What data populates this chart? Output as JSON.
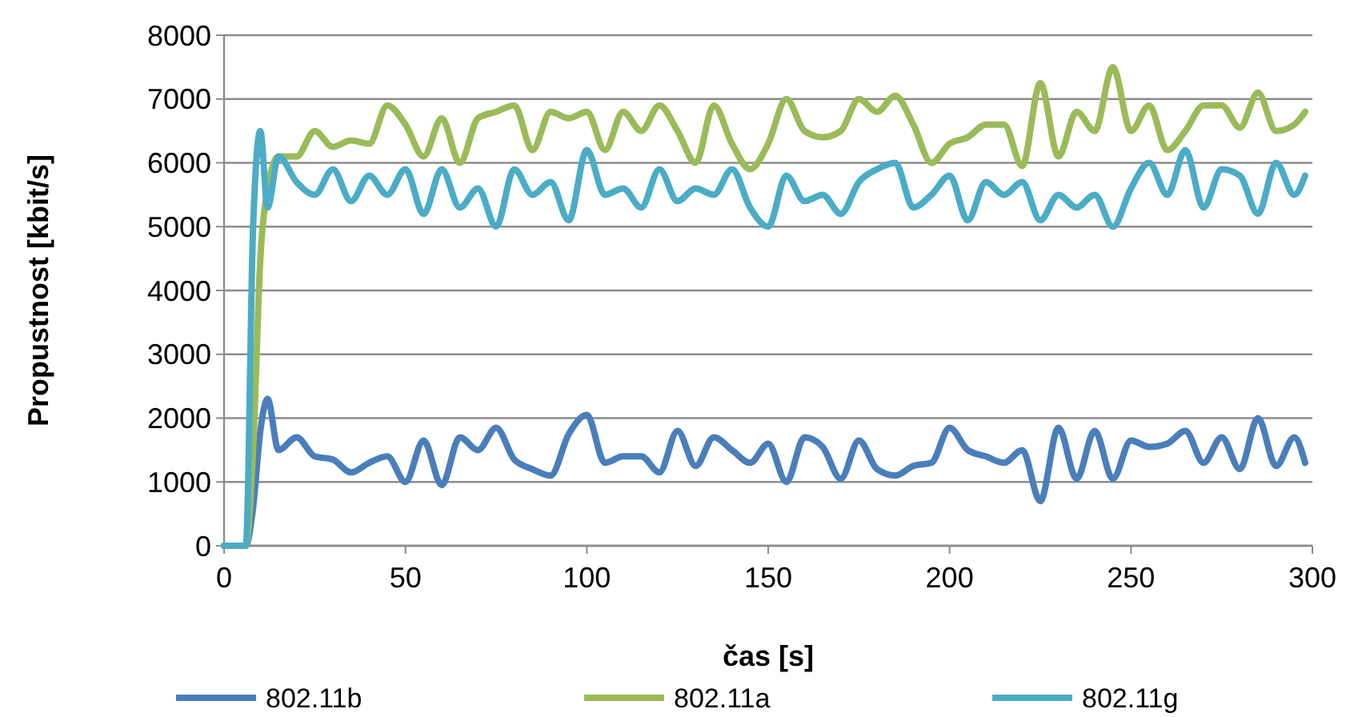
{
  "chart_data": {
    "type": "line",
    "xlabel": "čas [s]",
    "ylabel": "Propustnost [kbit/s]",
    "x": [
      0,
      3,
      6,
      8,
      10,
      12,
      15,
      20,
      25,
      30,
      35,
      40,
      45,
      50,
      55,
      60,
      65,
      70,
      75,
      80,
      85,
      90,
      95,
      100,
      105,
      110,
      115,
      120,
      125,
      130,
      135,
      140,
      145,
      150,
      155,
      160,
      165,
      170,
      175,
      180,
      185,
      190,
      195,
      200,
      205,
      210,
      215,
      220,
      225,
      230,
      235,
      240,
      245,
      250,
      255,
      260,
      265,
      270,
      275,
      280,
      285,
      290,
      295,
      298
    ],
    "series": [
      {
        "name": "802.11b",
        "color": "#4a7ebb",
        "values": [
          0,
          0,
          0,
          600,
          1800,
          2300,
          1500,
          1700,
          1400,
          1350,
          1150,
          1300,
          1400,
          1000,
          1650,
          950,
          1700,
          1500,
          1850,
          1350,
          1200,
          1100,
          1750,
          2050,
          1300,
          1400,
          1400,
          1150,
          1800,
          1250,
          1700,
          1500,
          1300,
          1600,
          1000,
          1700,
          1550,
          1050,
          1650,
          1200,
          1100,
          1250,
          1300,
          1850,
          1500,
          1400,
          1300,
          1500,
          700,
          1850,
          1050,
          1800,
          1050,
          1650,
          1550,
          1600,
          1800,
          1300,
          1700,
          1200,
          2000,
          1250,
          1700,
          1300
        ]
      },
      {
        "name": "802.11a",
        "color": "#9bbb59",
        "values": [
          0,
          0,
          0,
          1500,
          4500,
          5600,
          6100,
          6100,
          6500,
          6250,
          6350,
          6300,
          6900,
          6600,
          6100,
          6700,
          6000,
          6700,
          6800,
          6900,
          6200,
          6800,
          6700,
          6800,
          6200,
          6800,
          6500,
          6900,
          6500,
          6000,
          6900,
          6300,
          5900,
          6300,
          7000,
          6500,
          6400,
          6500,
          7000,
          6800,
          7050,
          6600,
          6000,
          6300,
          6400,
          6600,
          6600,
          5950,
          7250,
          6100,
          6800,
          6500,
          7500,
          6500,
          6900,
          6200,
          6500,
          6900,
          6900,
          6550,
          7100,
          6500,
          6600,
          6800
        ]
      },
      {
        "name": "802.11g",
        "color": "#4bacc6",
        "values": [
          0,
          0,
          0,
          5000,
          6500,
          5300,
          6100,
          5700,
          5500,
          5900,
          5400,
          5800,
          5500,
          5900,
          5200,
          5900,
          5300,
          5600,
          5000,
          5900,
          5500,
          5700,
          5100,
          6200,
          5500,
          5600,
          5300,
          5900,
          5400,
          5600,
          5500,
          5900,
          5300,
          5000,
          5800,
          5400,
          5500,
          5200,
          5700,
          5900,
          6000,
          5300,
          5500,
          5800,
          5100,
          5700,
          5500,
          5700,
          5100,
          5500,
          5300,
          5500,
          5000,
          5600,
          6000,
          5500,
          6200,
          5300,
          5900,
          5800,
          5200,
          6000,
          5500,
          5800
        ]
      }
    ],
    "xlim": [
      0,
      300
    ],
    "xticks": [
      0,
      50,
      100,
      150,
      200,
      250,
      300
    ],
    "ylim": [
      0,
      8000
    ],
    "yticks": [
      0,
      1000,
      2000,
      3000,
      4000,
      5000,
      6000,
      7000,
      8000
    ],
    "grid": "y",
    "legend": "bottom",
    "marker": "none",
    "line_style": "solid"
  }
}
